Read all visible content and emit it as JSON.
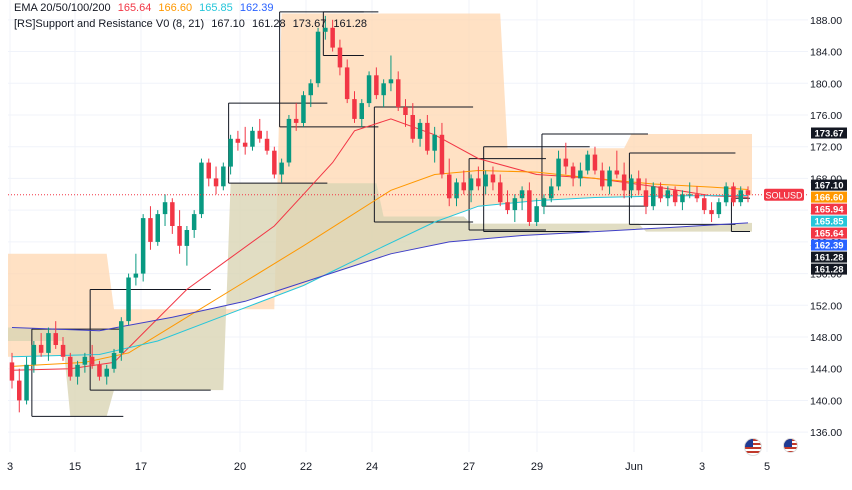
{
  "chart_data": {
    "type": "candlestick",
    "symbol": "SOLUSD",
    "ylim": [
      133.5,
      190.5
    ],
    "y_ticks": [
      136,
      140,
      144,
      148,
      152,
      156,
      160,
      164,
      168,
      172,
      176,
      180,
      184,
      188
    ],
    "x_ticks": [
      "3",
      "15",
      "17",
      "20",
      "22",
      "24",
      "27",
      "29",
      "Jun",
      "3",
      "5"
    ],
    "indicators": {
      "ema_title": "EMA 20/50/100/200",
      "ema_values": [
        "165.64",
        "166.60",
        "165.85",
        "162.39"
      ],
      "sr_title": "[RS]Support and Resistance V0 (8, 21)",
      "sr_values": [
        "167.10",
        "161.28",
        "173.67",
        "161.28"
      ]
    },
    "price_labels": [
      {
        "text": "173.67",
        "value": 173.67,
        "color": "#131722"
      },
      {
        "text": "167.10",
        "value": 167.1,
        "color": "#131722"
      },
      {
        "text": "166.60",
        "value": 166.6,
        "color": "#ff9800"
      },
      {
        "text": "165.94",
        "value": 165.94,
        "color": "#f23645"
      },
      {
        "text": "165.85",
        "value": 165.85,
        "color": "#26c6da"
      },
      {
        "text": "165.64",
        "value": 165.64,
        "color": "#f23645"
      },
      {
        "text": "162.39",
        "value": 162.39,
        "color": "#2962ff"
      },
      {
        "text": "161.28",
        "value": 161.28,
        "color": "#131722"
      },
      {
        "text": "161.28",
        "value": 161.28,
        "color": "#131722"
      }
    ],
    "candles": [
      [
        144.8,
        146.0,
        141.5,
        142.5
      ],
      [
        142.5,
        144.0,
        138.5,
        140.0
      ],
      [
        140.0,
        145.5,
        139.5,
        144.5
      ],
      [
        144.5,
        147.5,
        143.5,
        147.0
      ],
      [
        147.0,
        148.5,
        145.5,
        146.0
      ],
      [
        146.0,
        149.2,
        145.0,
        148.5
      ],
      [
        148.5,
        150.0,
        146.5,
        147.0
      ],
      [
        147.0,
        148.0,
        145.0,
        145.5
      ],
      [
        145.5,
        146.0,
        142.5,
        143.0
      ],
      [
        143.0,
        145.0,
        142.0,
        144.5
      ],
      [
        144.5,
        146.0,
        143.5,
        145.5
      ],
      [
        145.5,
        147.0,
        144.0,
        144.5
      ],
      [
        144.5,
        145.0,
        142.5,
        143.0
      ],
      [
        143.0,
        144.5,
        142.0,
        144.0
      ],
      [
        144.0,
        146.5,
        143.5,
        146.0
      ],
      [
        146.0,
        150.5,
        145.0,
        150.0
      ],
      [
        150.0,
        156.0,
        149.5,
        155.5
      ],
      [
        155.5,
        158.5,
        154.5,
        156.0
      ],
      [
        156.0,
        163.5,
        155.0,
        163.0
      ],
      [
        163.0,
        164.5,
        159.0,
        160.0
      ],
      [
        160.0,
        164.0,
        159.5,
        163.5
      ],
      [
        163.5,
        166.0,
        162.0,
        165.0
      ],
      [
        165.0,
        165.5,
        161.0,
        162.0
      ],
      [
        162.0,
        164.0,
        158.5,
        159.5
      ],
      [
        159.5,
        162.0,
        157.0,
        161.5
      ],
      [
        161.5,
        164.0,
        160.5,
        163.5
      ],
      [
        163.5,
        170.5,
        163.0,
        170.0
      ],
      [
        170.0,
        170.5,
        167.0,
        168.0
      ],
      [
        168.0,
        169.5,
        166.0,
        167.0
      ],
      [
        167.0,
        170.0,
        166.5,
        169.5
      ],
      [
        169.5,
        173.5,
        168.5,
        173.0
      ],
      [
        173.0,
        174.0,
        171.5,
        172.5
      ],
      [
        172.5,
        174.5,
        171.0,
        172.0
      ],
      [
        172.0,
        174.5,
        171.5,
        174.0
      ],
      [
        174.0,
        175.5,
        172.5,
        173.0
      ],
      [
        173.0,
        174.0,
        171.0,
        171.5
      ],
      [
        171.5,
        172.0,
        168.0,
        168.5
      ],
      [
        168.5,
        170.5,
        167.5,
        170.0
      ],
      [
        170.0,
        176.0,
        169.5,
        175.5
      ],
      [
        175.5,
        177.5,
        174.0,
        175.0
      ],
      [
        175.0,
        179.0,
        174.5,
        178.5
      ],
      [
        178.5,
        180.5,
        177.0,
        180.0
      ],
      [
        180.0,
        187.0,
        179.5,
        186.5
      ],
      [
        186.5,
        188.5,
        185.5,
        187.0
      ],
      [
        187.0,
        188.0,
        184.0,
        184.5
      ],
      [
        184.5,
        185.5,
        181.0,
        182.0
      ],
      [
        182.0,
        183.0,
        177.5,
        178.0
      ],
      [
        178.0,
        179.0,
        175.0,
        175.5
      ],
      [
        175.5,
        178.0,
        174.5,
        177.5
      ],
      [
        177.5,
        181.5,
        177.0,
        181.0
      ],
      [
        181.0,
        182.0,
        178.0,
        178.5
      ],
      [
        178.5,
        180.5,
        177.0,
        180.0
      ],
      [
        180.0,
        183.5,
        179.0,
        180.5
      ],
      [
        180.5,
        181.5,
        176.5,
        177.0
      ],
      [
        177.0,
        178.0,
        174.5,
        176.0
      ],
      [
        176.0,
        177.5,
        172.5,
        173.0
      ],
      [
        173.0,
        175.5,
        172.0,
        175.0
      ],
      [
        175.0,
        176.0,
        171.0,
        171.5
      ],
      [
        171.5,
        174.5,
        170.0,
        173.5
      ],
      [
        173.5,
        175.0,
        168.0,
        168.5
      ],
      [
        168.5,
        170.5,
        164.5,
        165.5
      ],
      [
        165.5,
        168.0,
        164.5,
        167.5
      ],
      [
        167.5,
        169.0,
        166.0,
        166.5
      ],
      [
        166.5,
        168.5,
        165.0,
        168.0
      ],
      [
        168.0,
        169.5,
        166.5,
        167.0
      ],
      [
        167.0,
        169.0,
        166.0,
        168.5
      ],
      [
        168.5,
        169.5,
        166.5,
        167.5
      ],
      [
        167.5,
        168.5,
        164.5,
        165.0
      ],
      [
        165.0,
        166.5,
        163.5,
        164.0
      ],
      [
        164.0,
        166.0,
        162.5,
        165.5
      ],
      [
        165.5,
        167.0,
        164.0,
        166.5
      ],
      [
        166.5,
        167.5,
        162.0,
        162.5
      ],
      [
        162.5,
        165.5,
        162.0,
        164.5
      ],
      [
        164.5,
        166.0,
        163.5,
        165.5
      ],
      [
        165.5,
        168.0,
        165.0,
        167.0
      ],
      [
        167.0,
        171.5,
        166.5,
        170.5
      ],
      [
        170.5,
        172.5,
        168.5,
        169.5
      ],
      [
        169.5,
        170.0,
        167.0,
        168.0
      ],
      [
        168.0,
        170.0,
        167.0,
        169.0
      ],
      [
        169.0,
        171.5,
        168.5,
        171.0
      ],
      [
        171.0,
        172.0,
        168.5,
        169.0
      ],
      [
        169.0,
        170.0,
        166.5,
        167.0
      ],
      [
        167.0,
        169.5,
        166.0,
        169.0
      ],
      [
        169.0,
        171.5,
        168.0,
        168.5
      ],
      [
        168.5,
        170.0,
        165.5,
        166.5
      ],
      [
        166.5,
        168.5,
        165.5,
        168.0
      ],
      [
        168.0,
        169.0,
        166.0,
        166.5
      ],
      [
        166.5,
        168.0,
        163.5,
        164.5
      ],
      [
        164.5,
        167.5,
        164.0,
        167.0
      ],
      [
        167.0,
        167.5,
        165.0,
        165.5
      ],
      [
        165.5,
        167.0,
        164.5,
        166.5
      ],
      [
        166.5,
        167.0,
        164.5,
        165.0
      ],
      [
        165.0,
        166.5,
        164.0,
        166.0
      ],
      [
        166.0,
        167.5,
        165.5,
        166.0
      ],
      [
        166.0,
        167.0,
        165.0,
        165.5
      ],
      [
        165.5,
        166.0,
        163.5,
        164.0
      ],
      [
        164.0,
        165.0,
        162.5,
        163.5
      ],
      [
        163.5,
        165.5,
        163.0,
        165.0
      ],
      [
        165.0,
        167.5,
        164.5,
        167.0
      ],
      [
        167.0,
        167.5,
        164.5,
        165.0
      ],
      [
        165.0,
        167.0,
        164.5,
        166.5
      ],
      [
        166.5,
        167.0,
        165.0,
        165.94
      ]
    ],
    "ema": [
      {
        "name": "EMA 20",
        "color": "#f23645",
        "points": [
          [
            0,
            143.8
          ],
          [
            8,
            144.0
          ],
          [
            14,
            144.8
          ],
          [
            18,
            148.5
          ],
          [
            24,
            154.0
          ],
          [
            30,
            158.0
          ],
          [
            36,
            162.0
          ],
          [
            40,
            166.0
          ],
          [
            44,
            170.0
          ],
          [
            47,
            174.0
          ],
          [
            52,
            175.5
          ],
          [
            58,
            173.5
          ],
          [
            64,
            170.5
          ],
          [
            72,
            168.5
          ],
          [
            80,
            168.0
          ],
          [
            88,
            167.0
          ],
          [
            96,
            165.8
          ],
          [
            101,
            165.64
          ]
        ]
      },
      {
        "name": "EMA 50",
        "color": "#ff9800",
        "points": [
          [
            0,
            144.3
          ],
          [
            10,
            144.8
          ],
          [
            16,
            146.0
          ],
          [
            24,
            150.5
          ],
          [
            32,
            155.0
          ],
          [
            40,
            159.5
          ],
          [
            46,
            163.0
          ],
          [
            52,
            166.5
          ],
          [
            58,
            168.5
          ],
          [
            64,
            169.0
          ],
          [
            72,
            168.8
          ],
          [
            80,
            168.0
          ],
          [
            88,
            167.3
          ],
          [
            96,
            166.9
          ],
          [
            101,
            166.6
          ]
        ]
      },
      {
        "name": "EMA 100",
        "color": "#26c6da",
        "points": [
          [
            0,
            145.5
          ],
          [
            12,
            145.8
          ],
          [
            20,
            147.5
          ],
          [
            30,
            151.0
          ],
          [
            40,
            154.5
          ],
          [
            50,
            159.0
          ],
          [
            58,
            162.5
          ],
          [
            64,
            164.5
          ],
          [
            72,
            165.2
          ],
          [
            80,
            165.6
          ],
          [
            90,
            165.8
          ],
          [
            101,
            165.85
          ]
        ]
      },
      {
        "name": "EMA 200",
        "color": "#3f3fc8",
        "points": [
          [
            0,
            149.2
          ],
          [
            12,
            148.8
          ],
          [
            22,
            150.5
          ],
          [
            32,
            152.5
          ],
          [
            42,
            155.5
          ],
          [
            52,
            158.5
          ],
          [
            60,
            160.0
          ],
          [
            70,
            160.8
          ],
          [
            80,
            161.3
          ],
          [
            90,
            161.8
          ],
          [
            101,
            162.39
          ]
        ]
      }
    ],
    "resistance_steps": [
      [
        0,
        158.5
      ],
      [
        13,
        158.5
      ],
      [
        14,
        151.5
      ],
      [
        36,
        151.5
      ],
      [
        37,
        188.8
      ],
      [
        67,
        188.8
      ],
      [
        68,
        171.8
      ],
      [
        84,
        171.8
      ],
      [
        85,
        173.6
      ],
      [
        101,
        173.6
      ]
    ],
    "support_steps": [
      [
        0,
        147.5
      ],
      [
        7,
        147.5
      ],
      [
        8,
        138.0
      ],
      [
        13,
        138.0
      ],
      [
        14,
        141.3
      ],
      [
        29,
        141.3
      ],
      [
        30,
        167.4
      ],
      [
        50,
        167.4
      ],
      [
        51,
        163.2
      ],
      [
        62,
        163.2
      ],
      [
        63,
        162.3
      ],
      [
        86,
        162.3
      ],
      [
        87,
        161.3
      ],
      [
        101,
        161.3
      ]
    ],
    "sr_boxes": [
      [
        3,
        15,
        138.0,
        149.0
      ],
      [
        11,
        27,
        141.3,
        154.0
      ],
      [
        30,
        43,
        167.4,
        177.5
      ],
      [
        37,
        50,
        174.5,
        189.0
      ],
      [
        43,
        48,
        183.5,
        189.0
      ],
      [
        50,
        63,
        162.5,
        177.0
      ],
      [
        63,
        73,
        161.5,
        170.5
      ],
      [
        65,
        79,
        161.3,
        172.0
      ],
      [
        73,
        87,
        164.5,
        173.6
      ],
      [
        85,
        99,
        162.2,
        171.2
      ],
      [
        99,
        101,
        161.3,
        165.5
      ]
    ]
  }
}
